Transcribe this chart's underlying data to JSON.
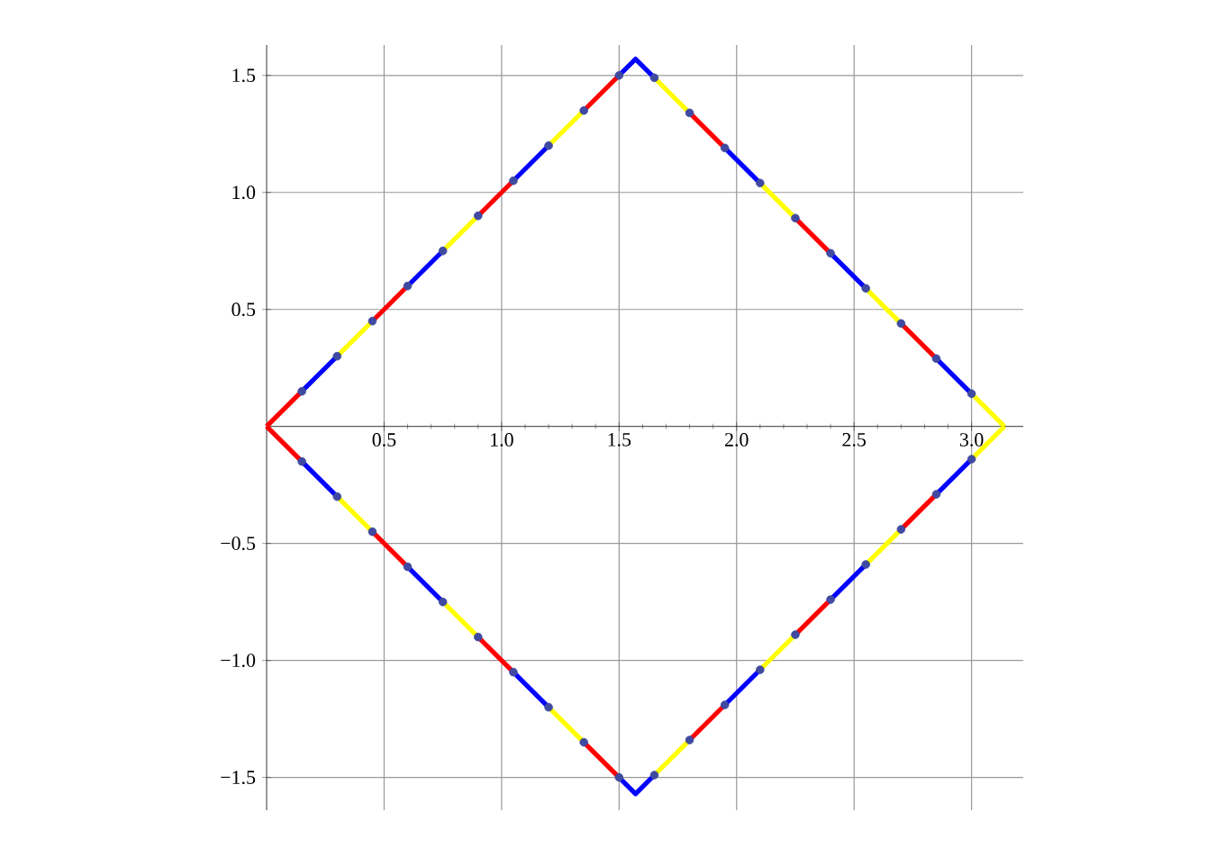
{
  "chart_data": {
    "type": "line",
    "xlim": [
      0,
      3.22
    ],
    "ylim": [
      -1.64,
      1.63
    ],
    "xticks": [
      {
        "value": 0.5,
        "label": "0.5"
      },
      {
        "value": 1.0,
        "label": "1.0"
      },
      {
        "value": 1.5,
        "label": "1.5"
      },
      {
        "value": 2.0,
        "label": "2.0"
      },
      {
        "value": 2.5,
        "label": "2.5"
      },
      {
        "value": 3.0,
        "label": "3.0"
      }
    ],
    "yticks": [
      {
        "value": -1.5,
        "label": "−1.5"
      },
      {
        "value": -1.0,
        "label": "−1.0"
      },
      {
        "value": -0.5,
        "label": "−0.5"
      },
      {
        "value": 0.5,
        "label": "0.5"
      },
      {
        "value": 1.0,
        "label": "1.0"
      },
      {
        "value": 1.5,
        "label": "1.5"
      }
    ],
    "grid": true,
    "line_style": "solid",
    "series": [
      {
        "marker": "none",
        "color": "#ff0000",
        "x": [
          0,
          0.15
        ],
        "values": [
          0,
          0.15
        ]
      },
      {
        "marker": "none",
        "color": "#0000ff",
        "x": [
          0.15,
          0.3
        ],
        "values": [
          0.15,
          0.3
        ]
      },
      {
        "marker": "none",
        "color": "#ffff00",
        "x": [
          0.3,
          0.45
        ],
        "values": [
          0.3,
          0.45
        ]
      },
      {
        "marker": "none",
        "color": "#ff0000",
        "x": [
          0.45,
          0.6
        ],
        "values": [
          0.45,
          0.6
        ]
      },
      {
        "marker": "none",
        "color": "#0000ff",
        "x": [
          0.6,
          0.75
        ],
        "values": [
          0.6,
          0.75
        ]
      },
      {
        "marker": "none",
        "color": "#ffff00",
        "x": [
          0.75,
          0.9
        ],
        "values": [
          0.75,
          0.9
        ]
      },
      {
        "marker": "none",
        "color": "#ff0000",
        "x": [
          0.9,
          1.05
        ],
        "values": [
          0.9,
          1.05
        ]
      },
      {
        "marker": "none",
        "color": "#0000ff",
        "x": [
          1.05,
          1.2
        ],
        "values": [
          1.05,
          1.2
        ]
      },
      {
        "marker": "none",
        "color": "#ffff00",
        "x": [
          1.2,
          1.35
        ],
        "values": [
          1.2,
          1.35
        ]
      },
      {
        "marker": "none",
        "color": "#ff0000",
        "x": [
          1.35,
          1.5
        ],
        "values": [
          1.35,
          1.5
        ]
      },
      {
        "marker": "none",
        "color": "#0000ff",
        "x": [
          1.5,
          1.57,
          1.65
        ],
        "values": [
          1.5,
          1.57,
          1.49
        ]
      },
      {
        "marker": "none",
        "color": "#ffff00",
        "x": [
          1.65,
          1.8
        ],
        "values": [
          1.49,
          1.34
        ]
      },
      {
        "marker": "none",
        "color": "#ff0000",
        "x": [
          1.8,
          1.95
        ],
        "values": [
          1.34,
          1.19
        ]
      },
      {
        "marker": "none",
        "color": "#0000ff",
        "x": [
          1.95,
          2.1
        ],
        "values": [
          1.19,
          1.04
        ]
      },
      {
        "marker": "none",
        "color": "#ffff00",
        "x": [
          2.1,
          2.25
        ],
        "values": [
          1.04,
          0.89
        ]
      },
      {
        "marker": "none",
        "color": "#ff0000",
        "x": [
          2.25,
          2.4
        ],
        "values": [
          0.89,
          0.74
        ]
      },
      {
        "marker": "none",
        "color": "#0000ff",
        "x": [
          2.4,
          2.55
        ],
        "values": [
          0.74,
          0.59
        ]
      },
      {
        "marker": "none",
        "color": "#ffff00",
        "x": [
          2.55,
          2.7
        ],
        "values": [
          0.59,
          0.44
        ]
      },
      {
        "marker": "none",
        "color": "#ff0000",
        "x": [
          2.7,
          2.85
        ],
        "values": [
          0.44,
          0.29
        ]
      },
      {
        "marker": "none",
        "color": "#0000ff",
        "x": [
          2.85,
          3.0
        ],
        "values": [
          0.29,
          0.14
        ]
      },
      {
        "marker": "none",
        "color": "#ffff00",
        "x": [
          3.0,
          3.14
        ],
        "values": [
          0.14,
          0
        ]
      },
      {
        "marker": "none",
        "color": "#ff0000",
        "x": [
          0,
          0.15
        ],
        "values": [
          0,
          -0.15
        ]
      },
      {
        "marker": "none",
        "color": "#0000ff",
        "x": [
          0.15,
          0.3
        ],
        "values": [
          -0.15,
          -0.3
        ]
      },
      {
        "marker": "none",
        "color": "#ffff00",
        "x": [
          0.3,
          0.45
        ],
        "values": [
          -0.3,
          -0.45
        ]
      },
      {
        "marker": "none",
        "color": "#ff0000",
        "x": [
          0.45,
          0.6
        ],
        "values": [
          -0.45,
          -0.6
        ]
      },
      {
        "marker": "none",
        "color": "#0000ff",
        "x": [
          0.6,
          0.75
        ],
        "values": [
          -0.6,
          -0.75
        ]
      },
      {
        "marker": "none",
        "color": "#ffff00",
        "x": [
          0.75,
          0.9
        ],
        "values": [
          -0.75,
          -0.9
        ]
      },
      {
        "marker": "none",
        "color": "#ff0000",
        "x": [
          0.9,
          1.05
        ],
        "values": [
          -0.9,
          -1.05
        ]
      },
      {
        "marker": "none",
        "color": "#0000ff",
        "x": [
          1.05,
          1.2
        ],
        "values": [
          -1.05,
          -1.2
        ]
      },
      {
        "marker": "none",
        "color": "#ffff00",
        "x": [
          1.2,
          1.35
        ],
        "values": [
          -1.2,
          -1.35
        ]
      },
      {
        "marker": "none",
        "color": "#ff0000",
        "x": [
          1.35,
          1.5
        ],
        "values": [
          -1.35,
          -1.5
        ]
      },
      {
        "marker": "none",
        "color": "#0000ff",
        "x": [
          1.5,
          1.57,
          1.65
        ],
        "values": [
          -1.5,
          -1.57,
          -1.49
        ]
      },
      {
        "marker": "none",
        "color": "#ffff00",
        "x": [
          1.65,
          1.8
        ],
        "values": [
          -1.49,
          -1.34
        ]
      },
      {
        "marker": "none",
        "color": "#ff0000",
        "x": [
          1.8,
          1.95
        ],
        "values": [
          -1.34,
          -1.19
        ]
      },
      {
        "marker": "none",
        "color": "#0000ff",
        "x": [
          1.95,
          2.1
        ],
        "values": [
          -1.19,
          -1.04
        ]
      },
      {
        "marker": "none",
        "color": "#ffff00",
        "x": [
          2.1,
          2.25
        ],
        "values": [
          -1.04,
          -0.89
        ]
      },
      {
        "marker": "none",
        "color": "#ff0000",
        "x": [
          2.25,
          2.4
        ],
        "values": [
          -0.89,
          -0.74
        ]
      },
      {
        "marker": "none",
        "color": "#0000ff",
        "x": [
          2.4,
          2.55
        ],
        "values": [
          -0.74,
          -0.59
        ]
      },
      {
        "marker": "none",
        "color": "#ffff00",
        "x": [
          2.55,
          2.7
        ],
        "values": [
          -0.59,
          -0.44
        ]
      },
      {
        "marker": "none",
        "color": "#ff0000",
        "x": [
          2.7,
          2.85
        ],
        "values": [
          -0.44,
          -0.29
        ]
      },
      {
        "marker": "none",
        "color": "#0000ff",
        "x": [
          2.85,
          3.0
        ],
        "values": [
          -0.29,
          -0.14
        ]
      },
      {
        "marker": "none",
        "color": "#ffff00",
        "x": [
          3.0,
          3.14
        ],
        "values": [
          -0.14,
          0
        ]
      },
      {
        "type": "scatter",
        "marker": "circle",
        "color": "#3f4aa0",
        "x": [
          0.15,
          0.3,
          0.45,
          0.6,
          0.75,
          0.9,
          1.05,
          1.2,
          1.35,
          1.5,
          1.65,
          1.8,
          1.95,
          2.1,
          2.25,
          2.4,
          2.55,
          2.7,
          2.85,
          3.0
        ],
        "values": [
          0.15,
          0.3,
          0.45,
          0.6,
          0.75,
          0.9,
          1.05,
          1.2,
          1.35,
          1.5,
          1.49,
          1.34,
          1.19,
          1.04,
          0.89,
          0.74,
          0.59,
          0.44,
          0.29,
          0.14
        ]
      },
      {
        "type": "scatter",
        "marker": "circle",
        "color": "#3f4aa0",
        "x": [
          0.15,
          0.3,
          0.45,
          0.6,
          0.75,
          0.9,
          1.05,
          1.2,
          1.35,
          1.5,
          1.65,
          1.8,
          1.95,
          2.1,
          2.25,
          2.4,
          2.55,
          2.7,
          2.85,
          3.0
        ],
        "values": [
          -0.15,
          -0.3,
          -0.45,
          -0.6,
          -0.75,
          -0.9,
          -1.05,
          -1.2,
          -1.35,
          -1.5,
          -1.49,
          -1.34,
          -1.19,
          -1.04,
          -0.89,
          -0.74,
          -0.59,
          -0.44,
          -0.29,
          -0.14
        ]
      }
    ]
  }
}
